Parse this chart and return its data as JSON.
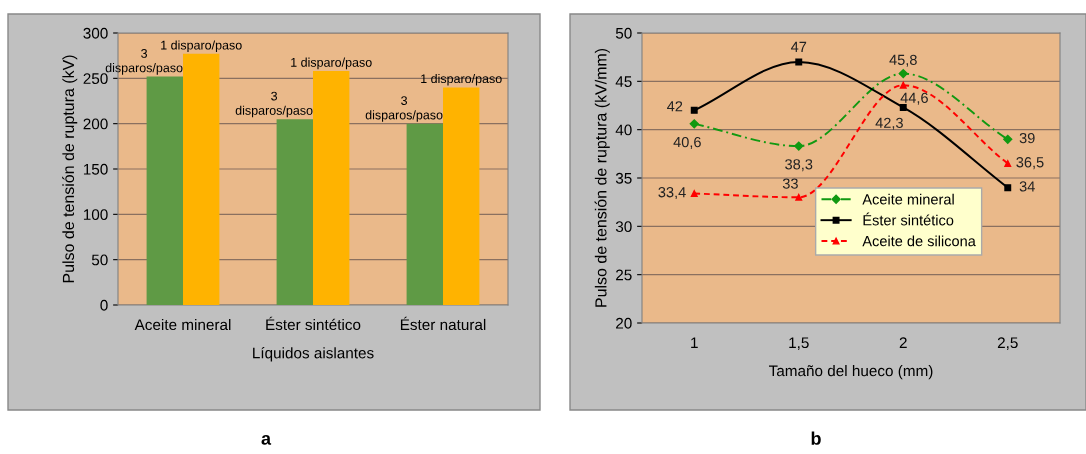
{
  "chart_data": [
    {
      "type": "bar",
      "ylabel": "Pulso de tensión de ruptura (kV)",
      "xlabel": "Líquidos aislantes",
      "categories": [
        "Aceite mineral",
        "Éster sintético",
        "Éster natural"
      ],
      "series": [
        {
          "name": "3 disparos/paso",
          "color": "#5f9a45",
          "values": [
            252,
            205,
            200
          ]
        },
        {
          "name": "1 disparo/paso",
          "color": "#ffb300",
          "values": [
            277,
            258,
            240
          ]
        }
      ],
      "ylim": [
        0,
        300
      ],
      "yticks": [
        0,
        50,
        100,
        150,
        200,
        250,
        300
      ],
      "grid": "y",
      "legend": false,
      "annotations": [
        "a"
      ]
    },
    {
      "type": "line",
      "ylabel": "Pulso de tensión de ruptura (kV/mm)",
      "xlabel": "Tamaño del hueco (mm)",
      "categories": [
        "1",
        "1,5",
        "2",
        "2,5"
      ],
      "series": [
        {
          "name": "Aceite mineral",
          "color": "#119911",
          "values": [
            40.6,
            38.3,
            45.8,
            39
          ],
          "value_labels": [
            "40,6",
            "38,3",
            "45,8",
            "39"
          ],
          "marker": "diamond",
          "line_style": "dashed"
        },
        {
          "name": "Éster sintético",
          "color": "#000000",
          "values": [
            42,
            47,
            42.3,
            34
          ],
          "value_labels": [
            "42",
            "47",
            "42,3",
            "34"
          ],
          "marker": "square",
          "line_style": "solid"
        },
        {
          "name": "Aceite de silicona",
          "color": "#ff0000",
          "values": [
            33.4,
            33,
            44.6,
            36.5
          ],
          "value_labels": [
            "33,4",
            "33",
            "44,6",
            "36,5"
          ],
          "marker": "triangle",
          "line_style": "dashed"
        }
      ],
      "ylim": [
        20,
        50
      ],
      "yticks": [
        20,
        25,
        30,
        35,
        40,
        45,
        50
      ],
      "grid": "y",
      "legend": "right",
      "annotations": [
        "b"
      ]
    }
  ]
}
